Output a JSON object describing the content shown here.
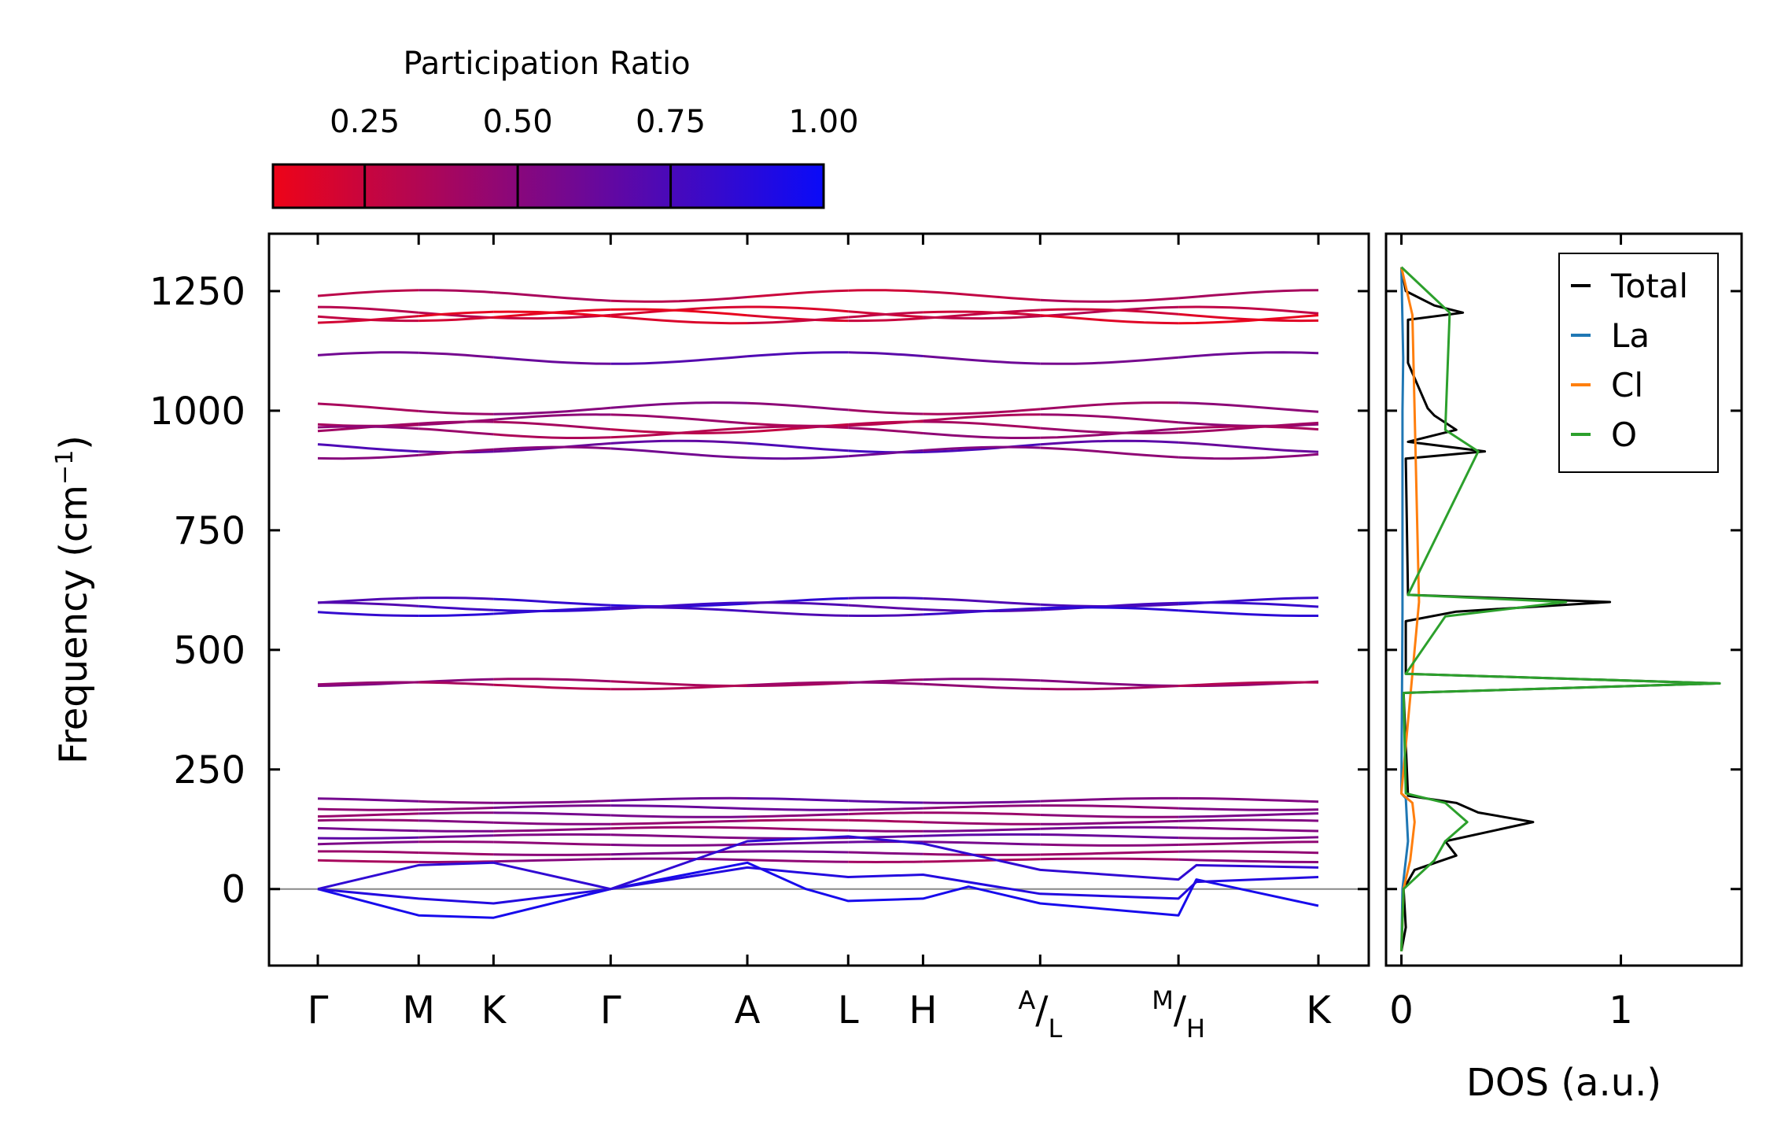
{
  "chart_data": [
    {
      "type": "line",
      "title": "",
      "xlabel": "",
      "ylabel": "Frequency (cm",
      "ylabel_sup": "−1",
      "ylabel_close": ")",
      "ylim": [
        -160,
        1370
      ],
      "yticks": [
        0,
        250,
        500,
        750,
        1000,
        1250
      ],
      "ytick_labels": [
        "0",
        "250",
        "500",
        "750",
        "1000",
        "1250"
      ],
      "kpath": [
        {
          "pos": 0.0,
          "label": "Γ",
          "type": "plain"
        },
        {
          "pos": 0.62,
          "label": "M",
          "type": "plain"
        },
        {
          "pos": 1.08,
          "label": "K",
          "type": "plain"
        },
        {
          "pos": 1.8,
          "label": "Γ",
          "type": "plain"
        },
        {
          "pos": 2.64,
          "label": "A",
          "type": "plain"
        },
        {
          "pos": 3.26,
          "label": "L",
          "type": "plain"
        },
        {
          "pos": 3.72,
          "label": "H",
          "type": "plain"
        },
        {
          "pos": 4.44,
          "sup": "A",
          "sub": "L",
          "type": "split"
        },
        {
          "pos": 5.29,
          "sup": "M",
          "sub": "H",
          "type": "split"
        },
        {
          "pos": 6.15,
          "label": "K",
          "type": "plain"
        }
      ],
      "colorbar": {
        "label": "Participation Ratio",
        "range": [
          0.1,
          1.0
        ],
        "ticks": [
          0.25,
          0.5,
          0.75,
          1.0
        ],
        "tick_labels": [
          "0.25",
          "0.50",
          "0.75",
          "1.00"
        ],
        "low_color": "#ee0418",
        "high_color": "#0a0bf8"
      },
      "zero_line": 0,
      "bands_flat": [
        {
          "f": 1240,
          "pr": 0.3
        },
        {
          "f": 1205,
          "pr": 0.25
        },
        {
          "f": 1200,
          "pr": 0.2
        },
        {
          "f": 1195,
          "pr": 0.2
        },
        {
          "f": 1110,
          "pr": 0.65
        },
        {
          "f": 1005,
          "pr": 0.45
        },
        {
          "f": 980,
          "pr": 0.4
        },
        {
          "f": 965,
          "pr": 0.35
        },
        {
          "f": 955,
          "pr": 0.4
        },
        {
          "f": 925,
          "pr": 0.7
        },
        {
          "f": 912,
          "pr": 0.55
        },
        {
          "f": 600,
          "pr": 0.8
        },
        {
          "f": 590,
          "pr": 0.75
        },
        {
          "f": 580,
          "pr": 0.8
        },
        {
          "f": 432,
          "pr": 0.45
        },
        {
          "f": 425,
          "pr": 0.4
        },
        {
          "f": 185,
          "pr": 0.6
        },
        {
          "f": 170,
          "pr": 0.55
        },
        {
          "f": 155,
          "pr": 0.5
        },
        {
          "f": 140,
          "pr": 0.45
        },
        {
          "f": 125,
          "pr": 0.5
        },
        {
          "f": 110,
          "pr": 0.6
        },
        {
          "f": 95,
          "pr": 0.55
        },
        {
          "f": 75,
          "pr": 0.5
        },
        {
          "f": 60,
          "pr": 0.45
        }
      ],
      "bands_acoustic": [
        {
          "name": "acoustic-1",
          "pr": 0.95,
          "pts": [
            [
              0,
              0
            ],
            [
              0.62,
              -55
            ],
            [
              1.08,
              -60
            ],
            [
              1.8,
              0
            ],
            [
              2.64,
              55
            ],
            [
              3.0,
              0
            ],
            [
              3.26,
              -25
            ],
            [
              3.72,
              -20
            ],
            [
              4.0,
              5
            ],
            [
              4.44,
              -30
            ],
            [
              5.29,
              -55
            ],
            [
              5.4,
              20
            ],
            [
              6.15,
              -35
            ]
          ]
        },
        {
          "name": "acoustic-2",
          "pr": 0.9,
          "pts": [
            [
              0,
              0
            ],
            [
              0.62,
              -20
            ],
            [
              1.08,
              -30
            ],
            [
              1.8,
              0
            ],
            [
              2.64,
              45
            ],
            [
              3.26,
              25
            ],
            [
              3.72,
              30
            ],
            [
              4.44,
              -10
            ],
            [
              5.29,
              -20
            ],
            [
              5.4,
              15
            ],
            [
              6.15,
              25
            ]
          ]
        },
        {
          "name": "acoustic-3",
          "pr": 0.85,
          "pts": [
            [
              0,
              0
            ],
            [
              0.62,
              50
            ],
            [
              1.08,
              55
            ],
            [
              1.8,
              0
            ],
            [
              2.64,
              100
            ],
            [
              3.26,
              110
            ],
            [
              3.72,
              95
            ],
            [
              4.44,
              40
            ],
            [
              5.29,
              20
            ],
            [
              5.4,
              50
            ],
            [
              6.15,
              45
            ]
          ]
        }
      ]
    },
    {
      "type": "line",
      "title": "",
      "xlabel": "DOS (a.u.)",
      "ylabel": "",
      "xlim": [
        -0.07,
        1.55
      ],
      "xticks": [
        0,
        1
      ],
      "xtick_labels": [
        "0",
        "1"
      ],
      "series": [
        {
          "name": "Total",
          "color": "#000000",
          "x": [
            [
              -130,
              0
            ],
            [
              -80,
              0.02
            ],
            [
              0,
              0.01
            ],
            [
              40,
              0.06
            ],
            [
              70,
              0.25
            ],
            [
              100,
              0.2
            ],
            [
              120,
              0.4
            ],
            [
              140,
              0.6
            ],
            [
              160,
              0.35
            ],
            [
              180,
              0.25
            ],
            [
              195,
              0.03
            ],
            [
              410,
              0.01
            ],
            [
              430,
              1.45
            ],
            [
              450,
              0.02
            ],
            [
              560,
              0.02
            ],
            [
              580,
              0.25
            ],
            [
              600,
              0.95
            ],
            [
              615,
              0.03
            ],
            [
              900,
              0.02
            ],
            [
              915,
              0.38
            ],
            [
              935,
              0.03
            ],
            [
              960,
              0.25
            ],
            [
              990,
              0.15
            ],
            [
              1005,
              0.12
            ],
            [
              1100,
              0.03
            ],
            [
              1190,
              0.03
            ],
            [
              1205,
              0.28
            ],
            [
              1220,
              0.15
            ],
            [
              1250,
              0.02
            ],
            [
              1300,
              0
            ]
          ]
        },
        {
          "name": "La",
          "color": "#1f77b4",
          "x": [
            [
              -130,
              0
            ],
            [
              0,
              0.005
            ],
            [
              100,
              0.03
            ],
            [
              190,
              0.02
            ],
            [
              200,
              0
            ],
            [
              580,
              0.005
            ],
            [
              1000,
              0.005
            ],
            [
              1110,
              0.008
            ],
            [
              1300,
              0
            ]
          ]
        },
        {
          "name": "Cl",
          "color": "#ff7f0e",
          "x": [
            [
              -130,
              0
            ],
            [
              0,
              0.01
            ],
            [
              60,
              0.04
            ],
            [
              100,
              0.05
            ],
            [
              140,
              0.06
            ],
            [
              180,
              0.05
            ],
            [
              200,
              0
            ],
            [
              600,
              0.08
            ],
            [
              1200,
              0.05
            ],
            [
              1300,
              0
            ]
          ]
        },
        {
          "name": "O",
          "color": "#2ca02c",
          "x": [
            [
              -130,
              0
            ],
            [
              0,
              0.01
            ],
            [
              60,
              0.15
            ],
            [
              100,
              0.2
            ],
            [
              140,
              0.3
            ],
            [
              180,
              0.2
            ],
            [
              200,
              0.02
            ],
            [
              410,
              0.01
            ],
            [
              430,
              1.45
            ],
            [
              450,
              0.02
            ],
            [
              570,
              0.2
            ],
            [
              600,
              0.75
            ],
            [
              615,
              0.03
            ],
            [
              915,
              0.35
            ],
            [
              960,
              0.2
            ],
            [
              1205,
              0.22
            ],
            [
              1300,
              0
            ]
          ]
        }
      ],
      "legend": [
        "Total",
        "La",
        "Cl",
        "O"
      ],
      "legend_position": "top-right"
    }
  ]
}
